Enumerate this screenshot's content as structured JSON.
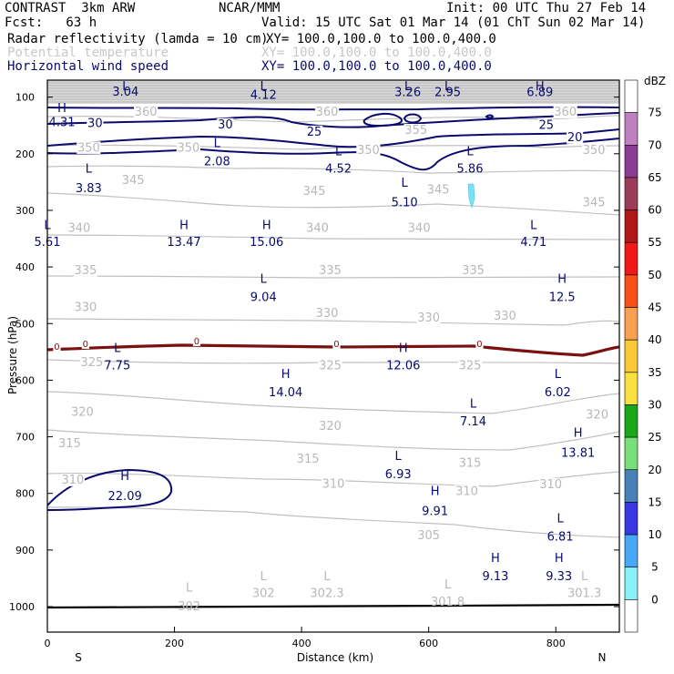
{
  "header": {
    "model": "CONTRAST  3km ARW",
    "org": "NCAR/MMM",
    "init": "Init: 00 UTC Thu 27 Feb 14",
    "fcst": "Fcst:   63 h",
    "valid": "Valid: 15 UTC Sat 01 Mar 14 (01 ChT Sun 02 Mar 14)",
    "fields": [
      {
        "name": "Radar reflectivity (lamda = 10 cm)",
        "xy": "XY= 100.0,100.0 to 100.0,400.0"
      },
      {
        "name": "Potential temperature",
        "xy": "XY= 100.0,100.0 to 100.0,400.0"
      },
      {
        "name": "Horizontal wind speed",
        "xy": "XY= 100.0,100.0 to 100.0,400.0"
      }
    ]
  },
  "colors": {
    "wind": "#0a0a6e",
    "theta": "#c0c0c0",
    "freezing": "#7a1010",
    "ground": "#000000",
    "echo": "#78e0f8"
  },
  "chart_data": {
    "type": "cross-section",
    "xlabel": "Distance (km)",
    "ylabel": "Pressure (hPa)",
    "xlim": [
      0,
      900
    ],
    "ylim": [
      1045,
      70
    ],
    "xticks": [
      "0",
      "200",
      "400",
      "600",
      "800"
    ],
    "xtick_values": [
      0,
      200,
      400,
      600,
      800
    ],
    "yticks": [
      "100",
      "200",
      "300",
      "400",
      "500",
      "600",
      "700",
      "800",
      "900",
      "1000"
    ],
    "ytick_values": [
      100,
      200,
      300,
      400,
      500,
      600,
      700,
      800,
      900,
      1000
    ],
    "left_end": "S",
    "right_end": "N",
    "colorbar": {
      "unit": "dBZ",
      "levels": [
        "75",
        "70",
        "65",
        "60",
        "55",
        "50",
        "45",
        "40",
        "35",
        "30",
        "25",
        "20",
        "15",
        "10",
        "5",
        "0"
      ],
      "colors": [
        "#ffffff",
        "#c080c0",
        "#8c3c94",
        "#9c3c58",
        "#b01818",
        "#f01818",
        "#f85018",
        "#f8a050",
        "#f8c838",
        "#f8e040",
        "#18a818",
        "#78e078",
        "#4880b8",
        "#3838e0",
        "#48a8f8",
        "#88f0f8",
        "#ffffff"
      ]
    },
    "theta_contour_labels": [
      {
        "text": "360",
        "x": 155,
        "p": 125
      },
      {
        "text": "360",
        "x": 440,
        "p": 125
      },
      {
        "text": "360",
        "x": 815,
        "p": 125
      },
      {
        "text": "355",
        "x": 580,
        "p": 157
      },
      {
        "text": "350",
        "x": 65,
        "p": 188
      },
      {
        "text": "350",
        "x": 222,
        "p": 188
      },
      {
        "text": "350",
        "x": 505,
        "p": 192
      },
      {
        "text": "350",
        "x": 860,
        "p": 192
      },
      {
        "text": "345",
        "x": 135,
        "p": 245
      },
      {
        "text": "345",
        "x": 420,
        "p": 265
      },
      {
        "text": "345",
        "x": 615,
        "p": 262
      },
      {
        "text": "345",
        "x": 860,
        "p": 285
      },
      {
        "text": "340",
        "x": 50,
        "p": 330
      },
      {
        "text": "340",
        "x": 425,
        "p": 330
      },
      {
        "text": "340",
        "x": 585,
        "p": 330
      },
      {
        "text": "335",
        "x": 60,
        "p": 405
      },
      {
        "text": "335",
        "x": 445,
        "p": 405
      },
      {
        "text": "335",
        "x": 670,
        "p": 405
      },
      {
        "text": "330",
        "x": 60,
        "p": 470
      },
      {
        "text": "330",
        "x": 440,
        "p": 480
      },
      {
        "text": "330",
        "x": 600,
        "p": 488
      },
      {
        "text": "330",
        "x": 720,
        "p": 485
      },
      {
        "text": "325",
        "x": 70,
        "p": 567
      },
      {
        "text": "325",
        "x": 445,
        "p": 573
      },
      {
        "text": "325",
        "x": 665,
        "p": 573
      },
      {
        "text": "320",
        "x": 55,
        "p": 655
      },
      {
        "text": "320",
        "x": 445,
        "p": 680
      },
      {
        "text": "320",
        "x": 865,
        "p": 660
      },
      {
        "text": "315",
        "x": 35,
        "p": 710
      },
      {
        "text": "315",
        "x": 410,
        "p": 738
      },
      {
        "text": "315",
        "x": 665,
        "p": 745
      },
      {
        "text": "310",
        "x": 40,
        "p": 775
      },
      {
        "text": "310",
        "x": 450,
        "p": 782
      },
      {
        "text": "310",
        "x": 660,
        "p": 795
      },
      {
        "text": "310",
        "x": 792,
        "p": 783
      },
      {
        "text": "305",
        "x": 600,
        "p": 873
      }
    ],
    "wind_contour_labels": [
      {
        "text": "30",
        "x": 75,
        "p": 145
      },
      {
        "text": "30",
        "x": 280,
        "p": 147
      },
      {
        "text": "25",
        "x": 420,
        "p": 160
      },
      {
        "text": "25",
        "x": 785,
        "p": 148
      },
      {
        "text": "20",
        "x": 830,
        "p": 170
      }
    ],
    "freezing_labels": [
      {
        "text": "0",
        "x": 15,
        "p": 540
      },
      {
        "text": "0",
        "x": 60,
        "p": 535
      },
      {
        "text": "0",
        "x": 235,
        "p": 530
      },
      {
        "text": "0",
        "x": 455,
        "p": 535
      },
      {
        "text": "0",
        "x": 680,
        "p": 535
      }
    ],
    "extrema_wind": [
      {
        "type": "L",
        "value": "3.04",
        "x": 123,
        "pl": 80,
        "pv": 89
      },
      {
        "type": "L",
        "value": "4.12",
        "x": 340,
        "pl": 80,
        "pv": 95
      },
      {
        "type": "L",
        "value": "3.26",
        "x": 567,
        "pl": 80,
        "pv": 90
      },
      {
        "type": "L",
        "value": "2.95",
        "x": 630,
        "pl": 80,
        "pv": 90
      },
      {
        "type": "H",
        "value": "6.89",
        "x": 775,
        "pl": 80,
        "pv": 90
      },
      {
        "type": "H",
        "value": "4.31",
        "x": 23,
        "pl": 118,
        "pv": 143
      },
      {
        "type": "L",
        "value": "2.08",
        "x": 267,
        "pl": 180,
        "pv": 212
      },
      {
        "type": "L",
        "value": "4.52",
        "x": 458,
        "pl": 195,
        "pv": 225
      },
      {
        "type": "L",
        "value": "5.86",
        "x": 665,
        "pl": 195,
        "pv": 225
      },
      {
        "type": "L",
        "value": "3.83",
        "x": 65,
        "pl": 225,
        "pv": 260
      },
      {
        "type": "L",
        "value": "5.10",
        "x": 562,
        "pl": 250,
        "pv": 285
      },
      {
        "type": "L",
        "value": "5.61",
        "x": 0,
        "pl": 325,
        "pv": 355
      },
      {
        "type": "H",
        "value": "13.47",
        "x": 215,
        "pl": 325,
        "pv": 355
      },
      {
        "type": "H",
        "value": "15.06",
        "x": 345,
        "pl": 325,
        "pv": 355
      },
      {
        "type": "L",
        "value": "4.71",
        "x": 765,
        "pl": 325,
        "pv": 355
      },
      {
        "type": "L",
        "value": "9.04",
        "x": 340,
        "pl": 420,
        "pv": 452
      },
      {
        "type": "H",
        "value": "12.5",
        "x": 810,
        "pl": 420,
        "pv": 452
      },
      {
        "type": "L",
        "value": "7.75",
        "x": 110,
        "pl": 542,
        "pv": 573
      },
      {
        "type": "H",
        "value": "12.06",
        "x": 560,
        "pl": 542,
        "pv": 573
      },
      {
        "type": "H",
        "value": "14.04",
        "x": 375,
        "pl": 588,
        "pv": 620
      },
      {
        "type": "L",
        "value": "6.02",
        "x": 803,
        "pl": 588,
        "pv": 620
      },
      {
        "type": "L",
        "value": "7.14",
        "x": 670,
        "pl": 640,
        "pv": 672
      },
      {
        "type": "H",
        "value": "13.81",
        "x": 835,
        "pl": 692,
        "pv": 727
      },
      {
        "type": "L",
        "value": "6.93",
        "x": 552,
        "pl": 733,
        "pv": 765
      },
      {
        "type": "H",
        "value": "22.09",
        "x": 122,
        "pl": 768,
        "pv": 804
      },
      {
        "type": "H",
        "value": "9.91",
        "x": 610,
        "pl": 795,
        "pv": 830
      },
      {
        "type": "L",
        "value": "6.81",
        "x": 807,
        "pl": 843,
        "pv": 875
      },
      {
        "type": "H",
        "value": "9.13",
        "x": 705,
        "pl": 913,
        "pv": 945
      },
      {
        "type": "H",
        "value": "9.33",
        "x": 805,
        "pl": 913,
        "pv": 945
      }
    ],
    "extrema_theta": [
      {
        "type": "L",
        "value": "302",
        "x": 223,
        "pl": 965,
        "pv": 998
      },
      {
        "type": "L",
        "value": "302",
        "x": 340,
        "pl": 945,
        "pv": 975
      },
      {
        "type": "L",
        "value": "302.3",
        "x": 440,
        "pl": 945,
        "pv": 975
      },
      {
        "type": "L",
        "value": "301.8",
        "x": 630,
        "pl": 960,
        "pv": 990
      },
      {
        "type": "L",
        "value": "301.3",
        "x": 845,
        "pl": 945,
        "pv": 975
      }
    ]
  }
}
